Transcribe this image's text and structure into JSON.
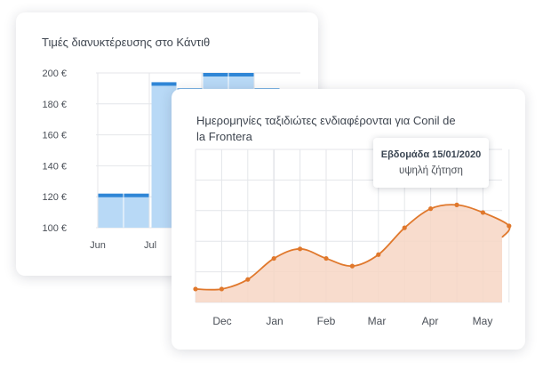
{
  "price_card": {
    "title": "Τιμές διανυκτέρευσης στο Κάντιθ"
  },
  "trend_card": {
    "title": "Ημερομηνίες ταξιδιώτες ενδιαφέρονται για Conil de la Frontera",
    "tooltip": {
      "title": "Εβδομάδα 15/01/2020",
      "subtitle": "υψηλή ζήτηση"
    }
  },
  "colors": {
    "bar_fill": "#b8d9f6",
    "bar_top": "#2f86d6",
    "area_fill": "#f7d6c4",
    "line": "#e0782c",
    "grid": "#e4e6ea",
    "text": "#4a4f57"
  },
  "chart_data": [
    {
      "type": "bar",
      "title": "Τιμές διανυκτέρευσης στο Κάντιθ",
      "y_ticks": [
        "200 €",
        "180 €",
        "160 €",
        "140 €",
        "120 €",
        "100 €"
      ],
      "y_tick_values": [
        200,
        180,
        160,
        140,
        120,
        100
      ],
      "ylim": [
        100,
        200
      ],
      "x_labels": [
        "Jun",
        "Jul"
      ],
      "bars": [
        {
          "value": 122,
          "month": "Jun"
        },
        {
          "value": 122,
          "month": "Jun"
        },
        {
          "value": 194,
          "month": "Jul"
        },
        {
          "value": 190,
          "month": "Jul"
        },
        {
          "value": 200,
          "month": "Jul"
        },
        {
          "value": 200,
          "month": "Jul"
        },
        {
          "value": 190,
          "month": "Jul"
        }
      ],
      "grid": true
    },
    {
      "type": "area",
      "title": "Ημερομηνίες ταξιδιώτες ενδιαφέρονται για Conil de la Frontera",
      "x_labels": [
        "Dec",
        "Jan",
        "Feb",
        "Mar",
        "Apr",
        "May"
      ],
      "values": [
        0.07,
        0.07,
        0.12,
        0.23,
        0.28,
        0.23,
        0.19,
        0.25,
        0.39,
        0.49,
        0.51,
        0.47,
        0.4
      ],
      "ylim": [
        0,
        0.8
      ],
      "grid": true
    }
  ]
}
